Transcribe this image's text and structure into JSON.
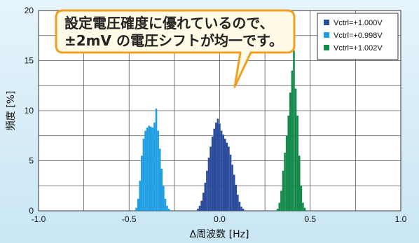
{
  "chart_data": {
    "type": "bar",
    "xlabel": "Δ周波数 [Hz]",
    "ylabel": "頻度 [%]",
    "xlim": [
      -1.0,
      1.0
    ],
    "ylim": [
      0,
      20
    ],
    "xticks": [
      "-1.0",
      "-0.5",
      "0.0",
      "0.5",
      "1.0"
    ],
    "yticks": [
      "0",
      "5",
      "10",
      "15",
      "20"
    ],
    "grid": true,
    "legend_position": "top-right",
    "bin_width": 0.01,
    "series": [
      {
        "name": "Vctrl=+1.000V",
        "color": "#2a4a9c",
        "x": [
          -0.12,
          -0.11,
          -0.1,
          -0.09,
          -0.08,
          -0.07,
          -0.06,
          -0.05,
          -0.04,
          -0.03,
          -0.02,
          -0.01,
          0.0,
          0.01,
          0.02,
          0.03,
          0.04,
          0.05,
          0.06,
          0.07,
          0.08,
          0.09,
          0.1,
          0.11,
          0.12,
          0.13
        ],
        "values": [
          0.2,
          0.5,
          1.0,
          1.8,
          2.8,
          4.0,
          5.3,
          6.4,
          7.4,
          8.2,
          8.8,
          9.2,
          8.7,
          8.0,
          7.6,
          7.2,
          6.8,
          6.4,
          5.6,
          4.6,
          3.6,
          2.6,
          1.6,
          0.9,
          0.4,
          0.2
        ]
      },
      {
        "name": "Vctrl=+0.998V",
        "color": "#1f9ee3",
        "x": [
          -0.46,
          -0.45,
          -0.44,
          -0.43,
          -0.42,
          -0.41,
          -0.4,
          -0.39,
          -0.38,
          -0.37,
          -0.36,
          -0.35,
          -0.34,
          -0.33,
          -0.32,
          -0.31,
          -0.3,
          -0.29,
          -0.28
        ],
        "values": [
          0.3,
          1.2,
          3.0,
          5.5,
          7.2,
          8.0,
          8.3,
          8.5,
          8.4,
          8.3,
          8.8,
          10.2,
          8.0,
          6.2,
          4.2,
          2.5,
          1.2,
          0.5,
          0.2
        ]
      },
      {
        "name": "Vctrl=+1.002V",
        "color": "#138a4a",
        "x": [
          0.32,
          0.33,
          0.34,
          0.35,
          0.36,
          0.37,
          0.38,
          0.39,
          0.4,
          0.41,
          0.42,
          0.43,
          0.44,
          0.45,
          0.46,
          0.47
        ],
        "values": [
          0.2,
          0.8,
          2.0,
          4.0,
          5.8,
          7.5,
          9.5,
          11.8,
          14.0,
          16.0,
          12.2,
          9.5,
          5.5,
          2.5,
          0.8,
          0.3
        ]
      }
    ],
    "annotation": {
      "line1": "設定電圧確度に優れているので、",
      "line2": "±2mV の電圧シフトが均一です。"
    }
  }
}
